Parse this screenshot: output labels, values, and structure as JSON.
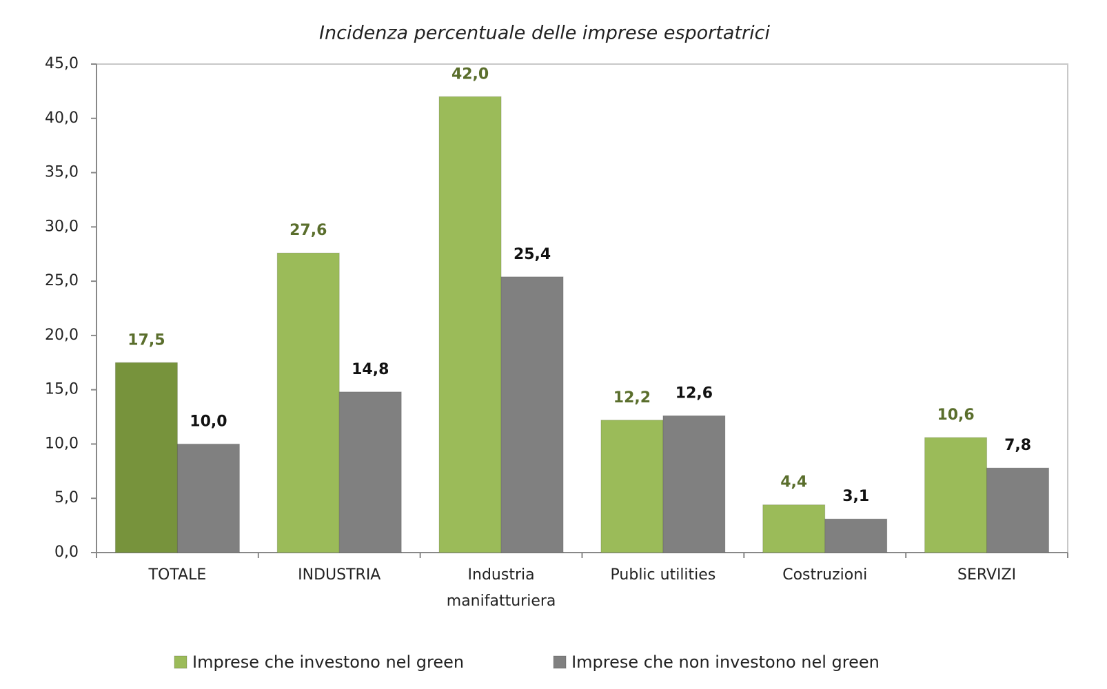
{
  "chart_data": {
    "type": "bar",
    "title": "Incidenza percentuale delle imprese esportatrici",
    "categories": [
      "TOTALE",
      "INDUSTRIA",
      "Industria manifatturiera",
      "Public utilities",
      "Costruzioni",
      "SERVIZI"
    ],
    "series": [
      {
        "name": "Imprese che investono nel green",
        "color": "#9bbb59",
        "colors": [
          "#77933c",
          "#9bbb59",
          "#9bbb59",
          "#9bbb59",
          "#9bbb59",
          "#9bbb59"
        ],
        "label_color": "#5a6e2c",
        "values": [
          17.5,
          27.6,
          42.0,
          12.2,
          4.4,
          10.6
        ],
        "value_labels": [
          "17,5",
          "27,6",
          "42,0",
          "12,2",
          "4,4",
          "10,6"
        ]
      },
      {
        "name": "Imprese che non investono nel green",
        "color": "#808080",
        "label_color": "#111111",
        "values": [
          10.0,
          14.8,
          25.4,
          12.6,
          3.1,
          7.8
        ],
        "value_labels": [
          "10,0",
          "14,8",
          "25,4",
          "12,6",
          "3,1",
          "7,8"
        ]
      }
    ],
    "ylim": [
      0,
      45
    ],
    "yticks": [
      {
        "value": 0,
        "label": "0,0"
      },
      {
        "value": 5,
        "label": "5,0"
      },
      {
        "value": 10,
        "label": "10,0"
      },
      {
        "value": 15,
        "label": "15,0"
      },
      {
        "value": 20,
        "label": "20,0"
      },
      {
        "value": 25,
        "label": "25,0"
      },
      {
        "value": 30,
        "label": "30,0"
      },
      {
        "value": 35,
        "label": "35,0"
      },
      {
        "value": 40,
        "label": "40,0"
      },
      {
        "value": 45,
        "label": "45,0"
      }
    ],
    "grid": false,
    "legend": "bottom"
  }
}
